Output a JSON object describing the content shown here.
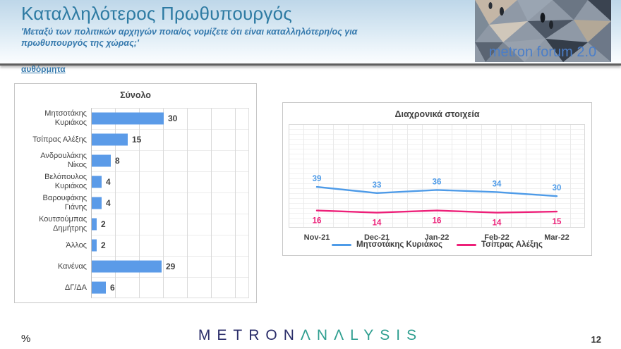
{
  "header": {
    "title": "Καταλληλότερος Πρωθυπουργός",
    "subtitle_line1": "'Μεταξύ των πολιτικών αρχηγών ποια/ος νομίζετε ότι είναι καταλληλότερη/ος για",
    "subtitle_line2": "πρωθυπουργός της χώρας;'",
    "note": "αυθόρμητα",
    "logo_text": "metron forum 2.0"
  },
  "footer": {
    "percent_label": "%",
    "brand_part1": "METRON",
    "brand_part2": "ΛNΛLYSIS",
    "page_number": "12"
  },
  "colors": {
    "bar_blue": "#5b9be8",
    "line_blue": "#4e9be8",
    "line_pink": "#ed2079",
    "title_blue": "#2e7ba3",
    "subtitle_blue": "#3579ad"
  },
  "chart_data": [
    {
      "type": "bar",
      "orientation": "horizontal",
      "title": "Σύνολο",
      "categories": [
        "Μητσοτάκης Κυριάκος",
        "Τσίπρας Αλέξης",
        "Ανδρουλάκης Νίκος",
        "Βελόπουλος Κυριάκος",
        "Βαρουφάκης Γιάνης",
        "Κουτσούμπας Δημήτρης",
        "Άλλος",
        "Κανένας",
        "ΔΓ/ΔΑ"
      ],
      "values": [
        30,
        15,
        8,
        4,
        4,
        2,
        2,
        29,
        6
      ],
      "bar_color": "#5b9be8",
      "xlim": [
        0,
        68
      ],
      "gridline_step": 10,
      "grid": true
    },
    {
      "type": "line",
      "title": "Διαχρονικά στοιχεία",
      "categories": [
        "Nov-21",
        "Dec-21",
        "Jan-22",
        "Feb-22",
        "Mar-22"
      ],
      "series": [
        {
          "name": "Μητσοτάκης Κυριάκος",
          "color": "#4e9be8",
          "values": [
            39,
            33,
            36,
            34,
            30
          ]
        },
        {
          "name": "Τσίπρας Αλέξης",
          "color": "#ed2079",
          "values": [
            16,
            14,
            16,
            14,
            15
          ]
        }
      ],
      "ylim": [
        0,
        100
      ],
      "grid": true,
      "legend_position": "bottom"
    }
  ]
}
